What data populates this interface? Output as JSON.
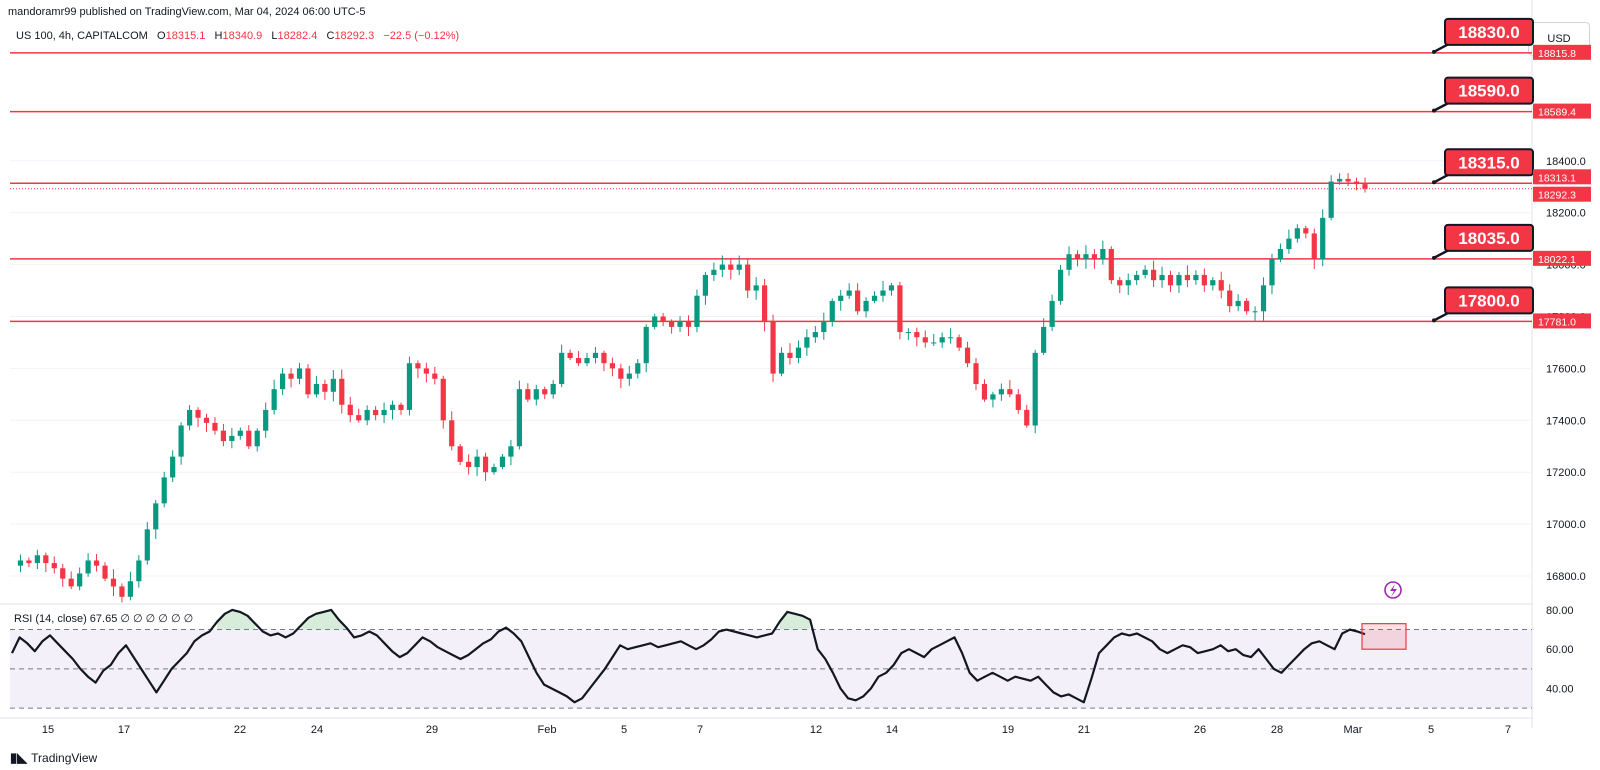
{
  "header": {
    "publisher": "mandoramr99 published on TradingView.com, Mar 04, 2024 06:00 UTC-5",
    "symbol": "US 100, 4h, CAPITALCOM",
    "open_label": "O",
    "open": "18315.1",
    "high_label": "H",
    "high": "18340.9",
    "low_label": "L",
    "low": "18282.4",
    "close_label": "C",
    "close": "18292.3",
    "change": "−22.5 (−0.12%)"
  },
  "currency": "USD",
  "rsi_label": "RSI (14, close)  67.65  ∅  ∅  ∅  ∅  ∅  ∅",
  "footer_brand": "TradingView",
  "colors": {
    "up": "#089981",
    "down": "#f23645",
    "level": "#f23645",
    "rsi": "#131722",
    "rsi_band": "#7e57c2"
  },
  "chart_data": [
    {
      "type": "candlestick",
      "symbol": "US 100",
      "interval": "4h",
      "ylim": [
        16700,
        18950
      ],
      "y_ticks": [
        16800,
        17000,
        17200,
        17400,
        17600,
        17800,
        18000,
        18200,
        18400
      ],
      "y_tick_labels": [
        "16800.0",
        "17000.0",
        "17200.0",
        "17400.0",
        "17600.0",
        "17800.0",
        "18000.0",
        "18200.0",
        "18400.0"
      ],
      "x_tick_labels": [
        "15",
        "17",
        "22",
        "24",
        "29",
        "Feb",
        "5",
        "7",
        "12",
        "14",
        "19",
        "21",
        "26",
        "28",
        "Mar",
        "5",
        "7"
      ],
      "last_price": 18292.3,
      "price_labels": [
        "18815.8",
        "18589.4",
        "18313.1",
        "18292.3",
        "18022.1",
        "17781.0"
      ],
      "levels": [
        {
          "value": 18815.8,
          "callout": "18830.0"
        },
        {
          "value": 18589.4,
          "callout": "18590.0"
        },
        {
          "value": 18313.1,
          "callout": "18315.0"
        },
        {
          "value": 18022.1,
          "callout": "18035.0"
        },
        {
          "value": 17781.0,
          "callout": "17800.0"
        }
      ],
      "close_path": [
        16840,
        16860,
        16850,
        16880,
        16850,
        16830,
        16790,
        16760,
        16810,
        16860,
        16840,
        16790,
        16760,
        16720,
        16780,
        16860,
        16980,
        17080,
        17180,
        17260,
        17380,
        17440,
        17410,
        17390,
        17360,
        17320,
        17340,
        17360,
        17300,
        17360,
        17440,
        17520,
        17580,
        17560,
        17600,
        17500,
        17540,
        17510,
        17560,
        17460,
        17420,
        17400,
        17440,
        17420,
        17440,
        17460,
        17440,
        17620,
        17600,
        17580,
        17560,
        17400,
        17300,
        17240,
        17220,
        17260,
        17200,
        17220,
        17260,
        17300,
        17520,
        17480,
        17520,
        17500,
        17540,
        17660,
        17640,
        17620,
        17640,
        17660,
        17620,
        17600,
        17560,
        17580,
        17620,
        17760,
        17800,
        17780,
        17760,
        17780,
        17760,
        17880,
        17960,
        17980,
        18000,
        17980,
        18000,
        17900,
        17920,
        17780,
        17580,
        17660,
        17640,
        17680,
        17720,
        17740,
        17780,
        17860,
        17880,
        17900,
        17820,
        17860,
        17880,
        17900,
        17920,
        17740,
        17740,
        17720,
        17700,
        17700,
        17720,
        17720,
        17680,
        17620,
        17540,
        17480,
        17500,
        17520,
        17500,
        17440,
        17380,
        17660,
        17760,
        17860,
        17980,
        18040,
        18020,
        18040,
        18020,
        18060,
        17940,
        17920,
        17940,
        17960,
        17980,
        17940,
        17960,
        17920,
        17960,
        17940,
        17960,
        17920,
        17940,
        17900,
        17840,
        17860,
        17820,
        17820,
        17920,
        18020,
        18060,
        18100,
        18140,
        18120,
        18020,
        18180,
        18320,
        18330,
        18320,
        18310,
        18292.3
      ]
    },
    {
      "type": "line",
      "name": "RSI (14, close)",
      "last_value": 67.65,
      "ylim": [
        25,
        83
      ],
      "y_ticks": [
        40,
        60,
        80
      ],
      "y_tick_labels": [
        "40.00",
        "60.00",
        "80.00"
      ],
      "bands": [
        30,
        50,
        70
      ],
      "values": [
        58,
        66,
        63,
        59,
        64,
        67,
        63,
        59,
        55,
        50,
        46,
        43,
        49,
        52,
        58,
        62,
        56,
        50,
        44,
        38,
        44,
        50,
        54,
        58,
        64,
        67,
        69,
        74,
        78,
        80,
        79,
        77,
        73,
        69,
        67,
        68,
        66,
        68,
        72,
        76,
        78,
        79,
        80,
        75,
        71,
        66,
        67,
        69,
        67,
        63,
        59,
        56,
        58,
        62,
        66,
        64,
        61,
        59,
        57,
        55,
        57,
        60,
        63,
        65,
        69,
        71,
        68,
        64,
        56,
        48,
        42,
        40,
        38,
        36,
        33,
        35,
        40,
        45,
        50,
        56,
        62,
        60,
        61,
        62,
        63,
        61,
        62,
        63,
        64,
        62,
        60,
        62,
        65,
        69,
        70,
        69,
        68,
        67,
        66,
        67,
        68,
        74,
        79,
        78,
        77,
        75,
        60,
        55,
        48,
        40,
        35,
        34,
        36,
        40,
        46,
        48,
        52,
        58,
        60,
        58,
        56,
        60,
        62,
        64,
        66,
        58,
        48,
        44,
        46,
        48,
        46,
        44,
        46,
        45,
        44,
        46,
        42,
        38,
        36,
        37,
        35,
        33,
        45,
        58,
        62,
        66,
        68,
        67,
        68,
        66,
        64,
        60,
        58,
        60,
        62,
        61,
        58,
        59,
        60,
        62,
        59,
        60,
        57,
        56,
        60,
        55,
        50,
        48,
        52,
        56,
        60,
        63,
        64,
        62,
        60,
        68,
        70,
        69,
        67.65
      ]
    }
  ]
}
